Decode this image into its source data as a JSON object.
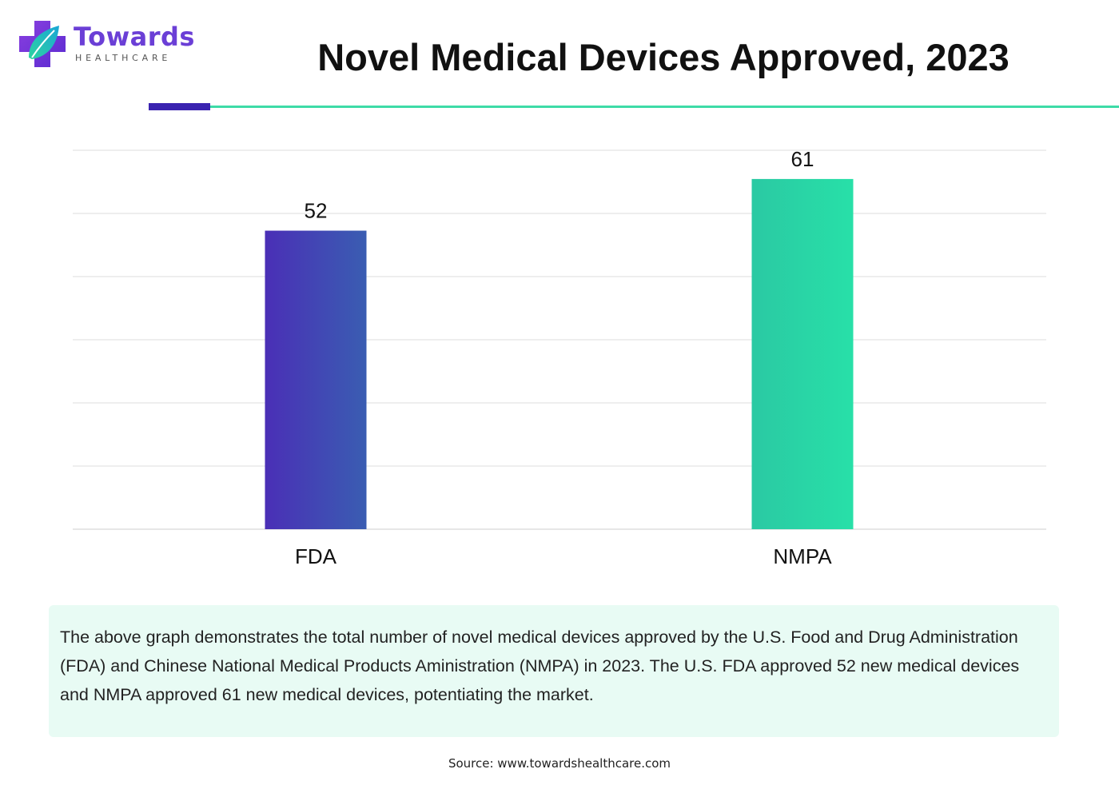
{
  "brand": {
    "name": "Towards",
    "subtitle": "HEALTHCARE",
    "colors": {
      "primary": "#6b3fd6",
      "accent": "#3ddba7",
      "dark_purple": "#3a23b0"
    }
  },
  "chart_data": {
    "type": "bar",
    "title": "Novel Medical Devices Approved, 2023",
    "categories": [
      "FDA",
      "NMPA"
    ],
    "values": [
      52,
      61
    ],
    "value_labels": [
      "52",
      "61"
    ],
    "xlabel": "",
    "ylabel": "",
    "ylim": [
      0,
      66
    ],
    "grid": true,
    "legend": "none",
    "colors": [
      [
        "#4a2fb6",
        "#3a5db2"
      ],
      [
        "#2ac9a3",
        "#28e0a8"
      ]
    ]
  },
  "caption": "The above graph demonstrates the total number of novel medical devices approved by the U.S. Food and Drug Administration (FDA) and Chinese National Medical Products Aministration (NMPA) in 2023. The U.S. FDA approved 52 new medical devices and NMPA approved 61 new medical devices, potentiating the market.",
  "source": "Source: www.towardshealthcare.com"
}
